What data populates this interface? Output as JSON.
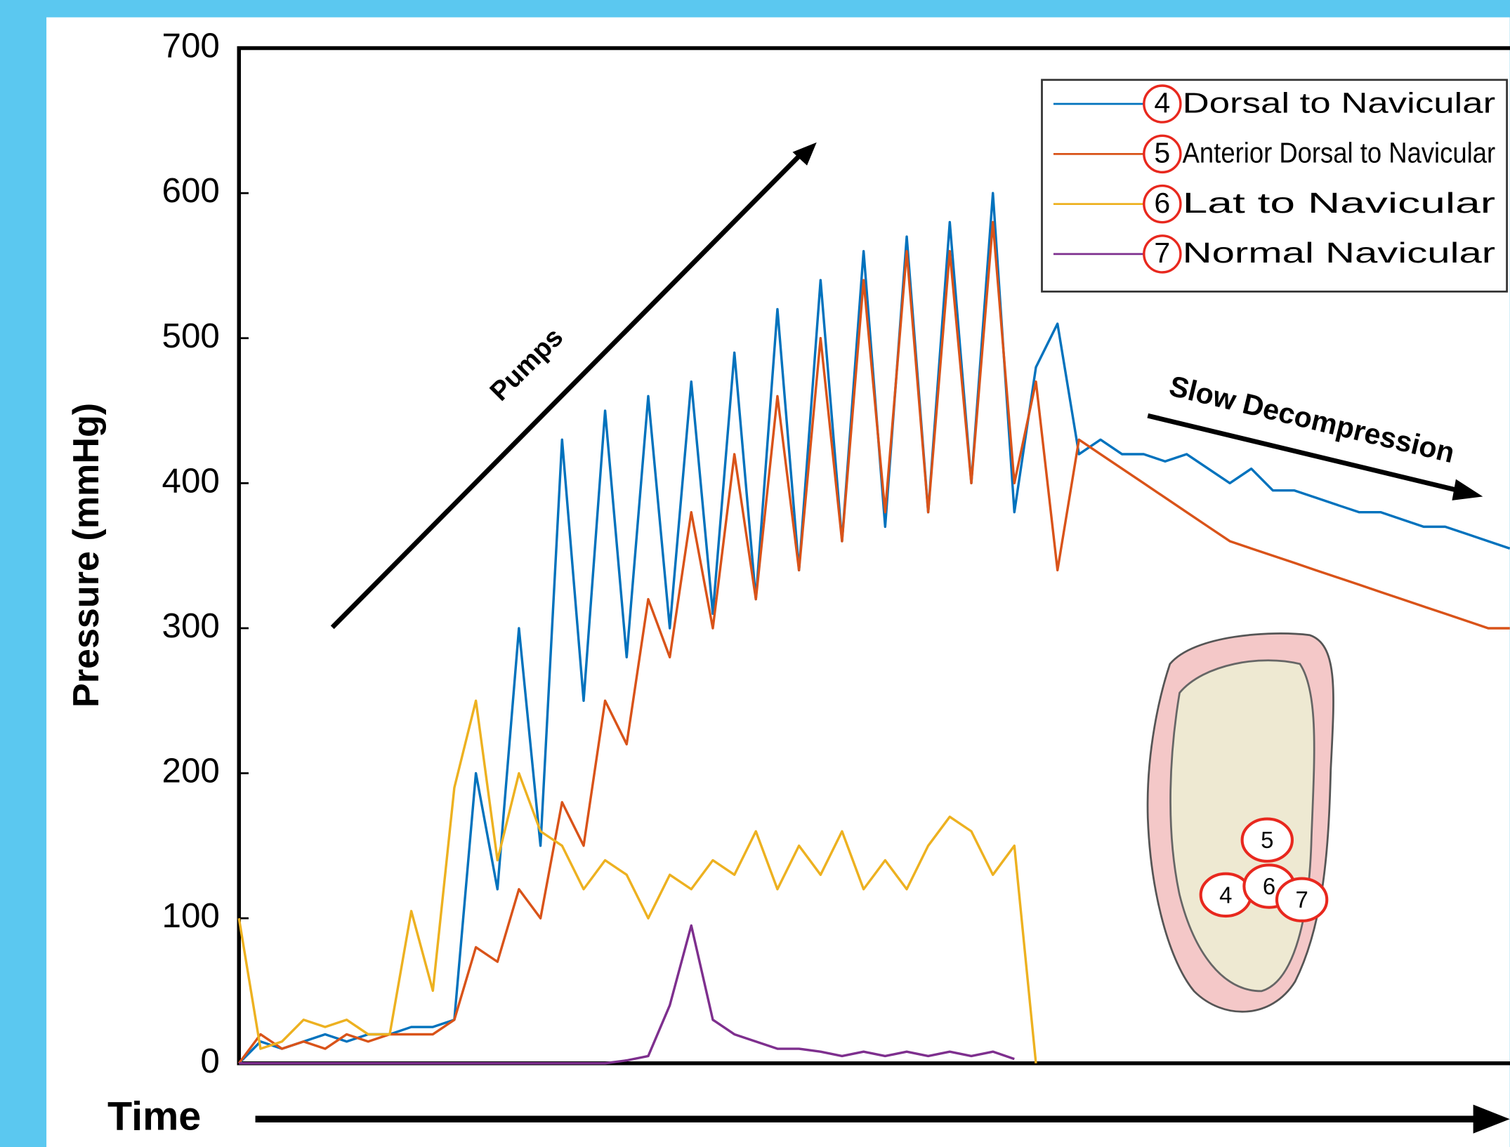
{
  "chart_data": {
    "type": "line",
    "ylabel": "Pressure (mmHg)",
    "xlabel": "Time",
    "annotations": {
      "pumps": "Pumps",
      "decompression": "Slow Decompression"
    },
    "foot_markers": [
      "5",
      "4",
      "6",
      "7"
    ],
    "ylim": [
      0,
      700
    ],
    "yticks": [
      0,
      100,
      200,
      300,
      400,
      500,
      600,
      700
    ],
    "categories": [
      null,
      null,
      null,
      null,
      null,
      null,
      null,
      null,
      null,
      null,
      null,
      null,
      null,
      null,
      null,
      null,
      null,
      null,
      null,
      null,
      null,
      null,
      null,
      null,
      null,
      null,
      null,
      null,
      null,
      null,
      null,
      null,
      null,
      null,
      null,
      null,
      null,
      null,
      null,
      null,
      null,
      null,
      null,
      null,
      null,
      null,
      null,
      null,
      null,
      null,
      null,
      null,
      null,
      null,
      null,
      null,
      null,
      null,
      null,
      null
    ],
    "legend": "upper right",
    "series": [
      {
        "name": "Dorsal to Navicular",
        "marker": "4",
        "color": "#0072bd",
        "values": [
          0,
          15,
          10,
          15,
          20,
          15,
          20,
          20,
          25,
          25,
          30,
          200,
          120,
          300,
          150,
          430,
          250,
          450,
          280,
          460,
          300,
          470,
          310,
          490,
          320,
          520,
          340,
          540,
          360,
          560,
          370,
          570,
          380,
          580,
          400,
          600,
          380,
          480,
          510,
          420,
          430,
          420,
          420,
          415,
          420,
          410,
          400,
          410,
          395,
          395,
          390,
          385,
          380,
          380,
          375,
          370,
          370,
          365,
          360,
          355
        ]
      },
      {
        "name": "Anterior Dorsal to Navicular",
        "marker": "5",
        "color": "#d95319",
        "values": [
          0,
          20,
          10,
          15,
          10,
          20,
          15,
          20,
          20,
          20,
          30,
          80,
          70,
          120,
          100,
          180,
          150,
          250,
          220,
          320,
          280,
          380,
          300,
          420,
          320,
          460,
          340,
          500,
          360,
          540,
          380,
          560,
          380,
          560,
          400,
          580,
          400,
          470,
          340,
          430,
          420,
          410,
          400,
          390,
          380,
          370,
          360,
          355,
          350,
          345,
          340,
          335,
          330,
          325,
          320,
          315,
          310,
          305,
          300,
          300
        ]
      },
      {
        "name": "Lat to Navicular",
        "marker": "6",
        "color": "#edb120",
        "values": [
          100,
          10,
          15,
          30,
          25,
          30,
          20,
          20,
          105,
          50,
          190,
          250,
          140,
          200,
          160,
          150,
          120,
          140,
          130,
          100,
          130,
          120,
          140,
          130,
          160,
          120,
          150,
          130,
          160,
          120,
          140,
          120,
          150,
          170,
          160,
          130,
          150,
          0,
          null,
          null,
          null,
          null,
          null,
          null,
          null,
          null,
          null,
          null,
          null,
          null,
          null,
          null,
          null,
          null,
          null,
          null,
          null,
          null,
          null,
          null
        ]
      },
      {
        "name": "Normal Navicular",
        "marker": "7",
        "color": "#7e2f8e",
        "values": [
          0,
          0,
          0,
          0,
          0,
          0,
          0,
          0,
          0,
          0,
          0,
          0,
          0,
          0,
          0,
          0,
          0,
          0,
          2,
          5,
          40,
          95,
          30,
          20,
          15,
          10,
          10,
          8,
          5,
          8,
          5,
          8,
          5,
          8,
          5,
          8,
          3,
          null,
          null,
          null,
          null,
          null,
          null,
          null,
          null,
          null,
          null,
          null,
          null,
          null,
          null,
          null,
          null,
          null,
          null,
          null,
          null,
          null,
          null,
          null
        ]
      }
    ]
  }
}
